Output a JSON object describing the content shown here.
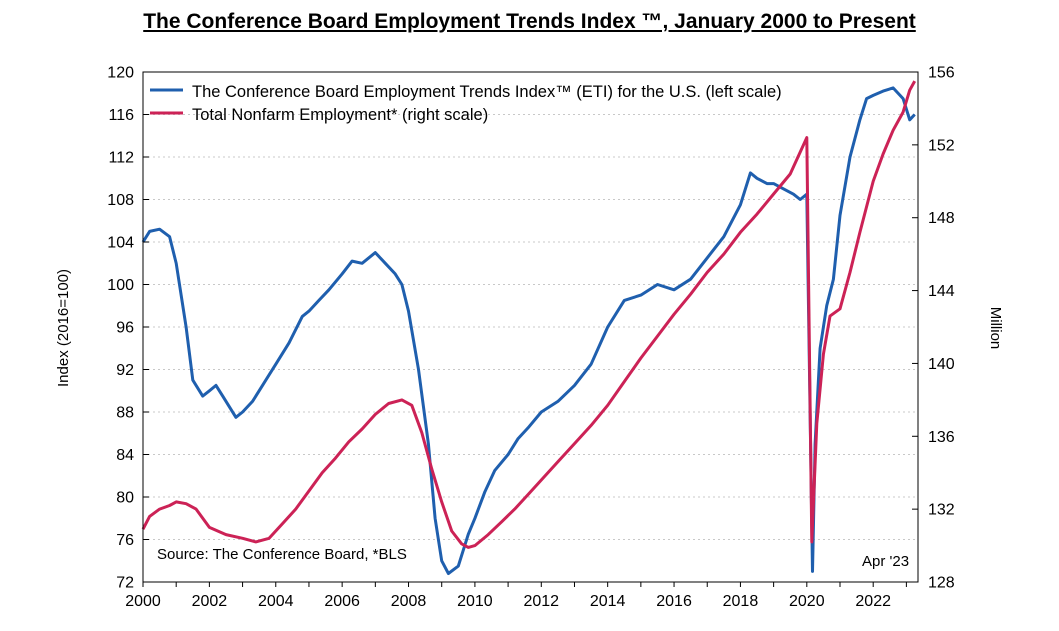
{
  "chart_data": {
    "type": "line",
    "title": "The Conference Board Employment Trends Index ™, January 2000 to Present",
    "ylabel": "Index (2016=100)",
    "y2label": "Million",
    "source": "Source: The Conference Board, *BLS",
    "date_note": "Apr '23",
    "xlim": [
      2000,
      2023.35
    ],
    "ylim": [
      72,
      120
    ],
    "y2lim": [
      128,
      156
    ],
    "x_ticks": [
      "2000",
      "2002",
      "2004",
      "2006",
      "2008",
      "2010",
      "2012",
      "2014",
      "2016",
      "2018",
      "2020",
      "2022"
    ],
    "y_ticks": [
      "72",
      "76",
      "80",
      "84",
      "88",
      "92",
      "96",
      "100",
      "104",
      "108",
      "112",
      "116",
      "120"
    ],
    "y2_ticks": [
      "128",
      "132",
      "136",
      "140",
      "144",
      "148",
      "152",
      "156"
    ],
    "grid": true,
    "legend_position": "top-left",
    "series": [
      {
        "name": "The Conference Board Employment Trends Index™ (ETI) for the U.S. (left scale)",
        "axis": "left",
        "color": "#1f5fae",
        "x": [
          2000.0,
          2000.2,
          2000.5,
          2000.8,
          2001.0,
          2001.3,
          2001.5,
          2001.8,
          2002.0,
          2002.2,
          2002.4,
          2002.6,
          2002.8,
          2003.0,
          2003.3,
          2003.6,
          2004.0,
          2004.4,
          2004.8,
          2005.0,
          2005.3,
          2005.6,
          2006.0,
          2006.3,
          2006.6,
          2007.0,
          2007.3,
          2007.6,
          2007.8,
          2008.0,
          2008.3,
          2008.6,
          2008.8,
          2009.0,
          2009.2,
          2009.5,
          2009.8,
          2010.0,
          2010.3,
          2010.6,
          2011.0,
          2011.3,
          2011.6,
          2012.0,
          2012.5,
          2013.0,
          2013.5,
          2014.0,
          2014.5,
          2015.0,
          2015.5,
          2016.0,
          2016.5,
          2017.0,
          2017.5,
          2018.0,
          2018.3,
          2018.5,
          2018.8,
          2019.0,
          2019.3,
          2019.6,
          2019.8,
          2020.0,
          2020.17,
          2020.25,
          2020.4,
          2020.6,
          2020.8,
          2021.0,
          2021.3,
          2021.6,
          2021.8,
          2022.0,
          2022.3,
          2022.6,
          2022.9,
          2023.0,
          2023.1,
          2023.25
        ],
        "y": [
          104.0,
          105.0,
          105.2,
          104.5,
          102.0,
          96.0,
          91.0,
          89.5,
          90.0,
          90.5,
          89.5,
          88.5,
          87.5,
          88.0,
          89.0,
          90.5,
          92.5,
          94.5,
          97.0,
          97.5,
          98.5,
          99.5,
          101.0,
          102.2,
          102.0,
          103.0,
          102.0,
          101.0,
          100.0,
          97.5,
          92.0,
          85.0,
          78.0,
          74.0,
          72.8,
          73.5,
          76.5,
          78.0,
          80.5,
          82.5,
          84.0,
          85.5,
          86.5,
          88.0,
          89.0,
          90.5,
          92.5,
          96.0,
          98.5,
          99.0,
          100.0,
          99.5,
          100.5,
          102.5,
          104.5,
          107.5,
          110.5,
          110.0,
          109.5,
          109.5,
          109.0,
          108.5,
          108.0,
          108.5,
          73.0,
          85.0,
          94.0,
          98.0,
          100.5,
          106.5,
          112.0,
          115.5,
          117.5,
          117.8,
          118.2,
          118.5,
          117.5,
          116.5,
          115.5,
          116.0
        ]
      },
      {
        "name": "Total Nonfarm Employment* (right scale)",
        "axis": "right",
        "color": "#cc2256",
        "x": [
          2000.0,
          2000.2,
          2000.5,
          2000.8,
          2001.0,
          2001.3,
          2001.6,
          2002.0,
          2002.5,
          2003.0,
          2003.4,
          2003.8,
          2004.2,
          2004.6,
          2005.0,
          2005.4,
          2005.8,
          2006.2,
          2006.6,
          2007.0,
          2007.4,
          2007.8,
          2008.1,
          2008.4,
          2008.7,
          2009.0,
          2009.3,
          2009.6,
          2009.8,
          2010.0,
          2010.4,
          2010.8,
          2011.2,
          2011.6,
          2012.0,
          2012.5,
          2013.0,
          2013.5,
          2014.0,
          2014.5,
          2015.0,
          2015.5,
          2016.0,
          2016.5,
          2017.0,
          2017.5,
          2018.0,
          2018.5,
          2019.0,
          2019.5,
          2020.0,
          2020.15,
          2020.3,
          2020.5,
          2020.7,
          2021.0,
          2021.3,
          2021.6,
          2022.0,
          2022.3,
          2022.6,
          2022.9,
          2023.1,
          2023.25
        ],
        "y": [
          130.9,
          131.6,
          132.0,
          132.2,
          132.4,
          132.3,
          132.0,
          131.0,
          130.6,
          130.4,
          130.2,
          130.4,
          131.2,
          132.0,
          133.0,
          134.0,
          134.8,
          135.7,
          136.4,
          137.2,
          137.8,
          138.0,
          137.7,
          136.2,
          134.2,
          132.4,
          130.8,
          130.1,
          129.9,
          130.0,
          130.6,
          131.3,
          132.0,
          132.8,
          133.6,
          134.6,
          135.6,
          136.6,
          137.7,
          139.0,
          140.3,
          141.5,
          142.7,
          143.8,
          145.0,
          146.0,
          147.2,
          148.2,
          149.3,
          150.4,
          152.4,
          130.2,
          136.7,
          140.5,
          142.6,
          143.0,
          145.0,
          147.2,
          150.0,
          151.5,
          152.8,
          153.8,
          155.0,
          155.5
        ]
      }
    ]
  }
}
